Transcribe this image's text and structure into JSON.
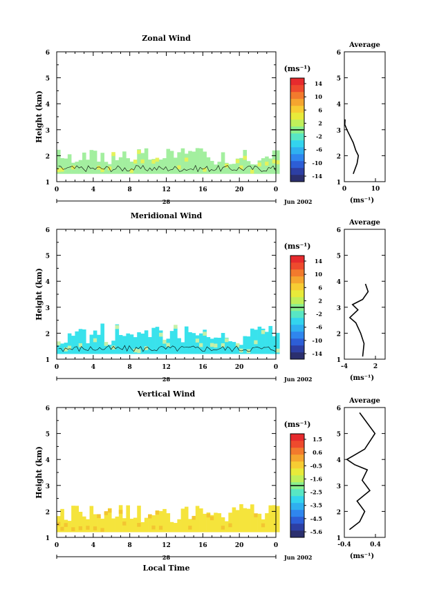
{
  "colors": {
    "colorbar": [
      "#2b2f6e",
      "#2d3fa3",
      "#2d5ed6",
      "#2f86ee",
      "#2fb0f0",
      "#33d4ee",
      "#58e6c4",
      "#8aef8e",
      "#c0ef5a",
      "#e8ea3a",
      "#f7cc33",
      "#f5a52f",
      "#f27a2d",
      "#ee4a2d",
      "#e62a2d"
    ],
    "zonal_fill": "#a3ef9f",
    "zonal_fill2": "#e5f25a",
    "meridional_fill": "#39e2ec",
    "meridional_fill2": "#c6f0a8",
    "vertical_fill": "#f5e43c",
    "vertical_fill2": "#f3c531"
  },
  "date_label": "Jun 2002",
  "day_label": "28",
  "xlabel_bottom": "Local Time",
  "unit_label": "(ms⁻¹)",
  "panels": [
    {
      "title": "Zonal Wind",
      "ylabel": "Height (km)",
      "yticks": [
        "1",
        "2",
        "3",
        "4",
        "5",
        "6"
      ],
      "xticks": [
        "0",
        "4",
        "8",
        "12",
        "16",
        "20",
        "0"
      ],
      "colorbar_ticks": [
        "14",
        "10",
        "6",
        "2",
        "-2",
        "-6",
        "-10",
        "-14"
      ],
      "avg_title": "Average",
      "avg_yticks": [
        "1",
        "2",
        "3",
        "4",
        "5",
        "6"
      ],
      "avg_xticks": [
        "0",
        "10"
      ],
      "avg_unit": "(ms⁻¹)"
    },
    {
      "title": "Meridional Wind",
      "ylabel": "Height (km)",
      "yticks": [
        "1",
        "2",
        "3",
        "4",
        "5",
        "6"
      ],
      "xticks": [
        "0",
        "4",
        "8",
        "12",
        "16",
        "20",
        "0"
      ],
      "colorbar_ticks": [
        "14",
        "10",
        "6",
        "2",
        "-2",
        "-6",
        "-10",
        "-14"
      ],
      "avg_title": "Average",
      "avg_yticks": [
        "1",
        "2",
        "3",
        "4",
        "5",
        "6"
      ],
      "avg_xticks": [
        "-4",
        "2"
      ],
      "avg_unit": "(ms⁻¹)"
    },
    {
      "title": "Vertical Wind",
      "ylabel": "Height (km)",
      "yticks": [
        "1",
        "2",
        "3",
        "4",
        "5",
        "6"
      ],
      "xticks": [
        "0",
        "4",
        "8",
        "12",
        "16",
        "20",
        "0"
      ],
      "colorbar_ticks": [
        "1.5",
        "0.6",
        "-0.5",
        "-1.6",
        "-2.5",
        "-3.5",
        "-4.5",
        "-5.6"
      ],
      "avg_title": "Average",
      "avg_yticks": [
        "1",
        "2",
        "3",
        "4",
        "5",
        "6"
      ],
      "avg_xticks": [
        "-0.4",
        "0.4"
      ],
      "avg_unit": "(ms⁻¹)"
    }
  ],
  "chart_data": [
    {
      "type": "heatmap",
      "title": "Zonal Wind",
      "ylabel": "Height (km)",
      "xlim": [
        0,
        24
      ],
      "ylim": [
        1,
        6
      ],
      "data_extent": {
        "height_min": 1.3,
        "height_max": 2.3
      },
      "value_range_ms": [
        -14,
        14
      ]
    },
    {
      "type": "line",
      "title": "Average",
      "xlim": [
        0,
        16
      ],
      "ylim": [
        1,
        6
      ],
      "x": [
        3.5,
        5.0,
        5.5,
        4.5,
        3.5,
        2.0,
        1.0,
        0.2,
        0.3
      ],
      "y": [
        1.3,
        1.7,
        2.0,
        2.2,
        2.5,
        2.8,
        3.0,
        3.2,
        3.4
      ]
    },
    {
      "type": "heatmap",
      "title": "Meridional Wind",
      "ylabel": "Height (km)",
      "xlim": [
        0,
        24
      ],
      "ylim": [
        1,
        6
      ],
      "data_extent": {
        "height_min": 1.2,
        "height_max": 2.4
      },
      "value_range_ms": [
        -14,
        14
      ]
    },
    {
      "type": "line",
      "title": "Average",
      "xlim": [
        -4,
        2
      ],
      "ylim": [
        1,
        6
      ],
      "x": [
        -1.3,
        -1.1,
        -1.6,
        -2.3,
        -3.2,
        -2.0,
        -2.8,
        -1.3,
        -0.5,
        -0.9
      ],
      "y": [
        1.1,
        1.6,
        2.0,
        2.4,
        2.6,
        2.9,
        3.1,
        3.3,
        3.6,
        3.9
      ]
    },
    {
      "type": "heatmap",
      "title": "Vertical Wind",
      "ylabel": "Height (km)",
      "xlim": [
        0,
        24
      ],
      "ylim": [
        1,
        6
      ],
      "data_extent": {
        "height_min": 1.2,
        "height_max": 2.3
      },
      "value_range_ms": [
        -5.6,
        1.5
      ]
    },
    {
      "type": "line",
      "title": "Average",
      "xlim": [
        -0.4,
        0.4
      ],
      "ylim": [
        1,
        6
      ],
      "x": [
        -0.3,
        -0.1,
        0.0,
        -0.15,
        0.1,
        -0.05,
        0.05,
        -0.2,
        -0.35,
        0.0,
        0.2,
        -0.1
      ],
      "y": [
        1.3,
        1.6,
        2.0,
        2.4,
        2.8,
        3.2,
        3.6,
        3.8,
        4.0,
        4.4,
        5.0,
        5.8
      ]
    }
  ]
}
